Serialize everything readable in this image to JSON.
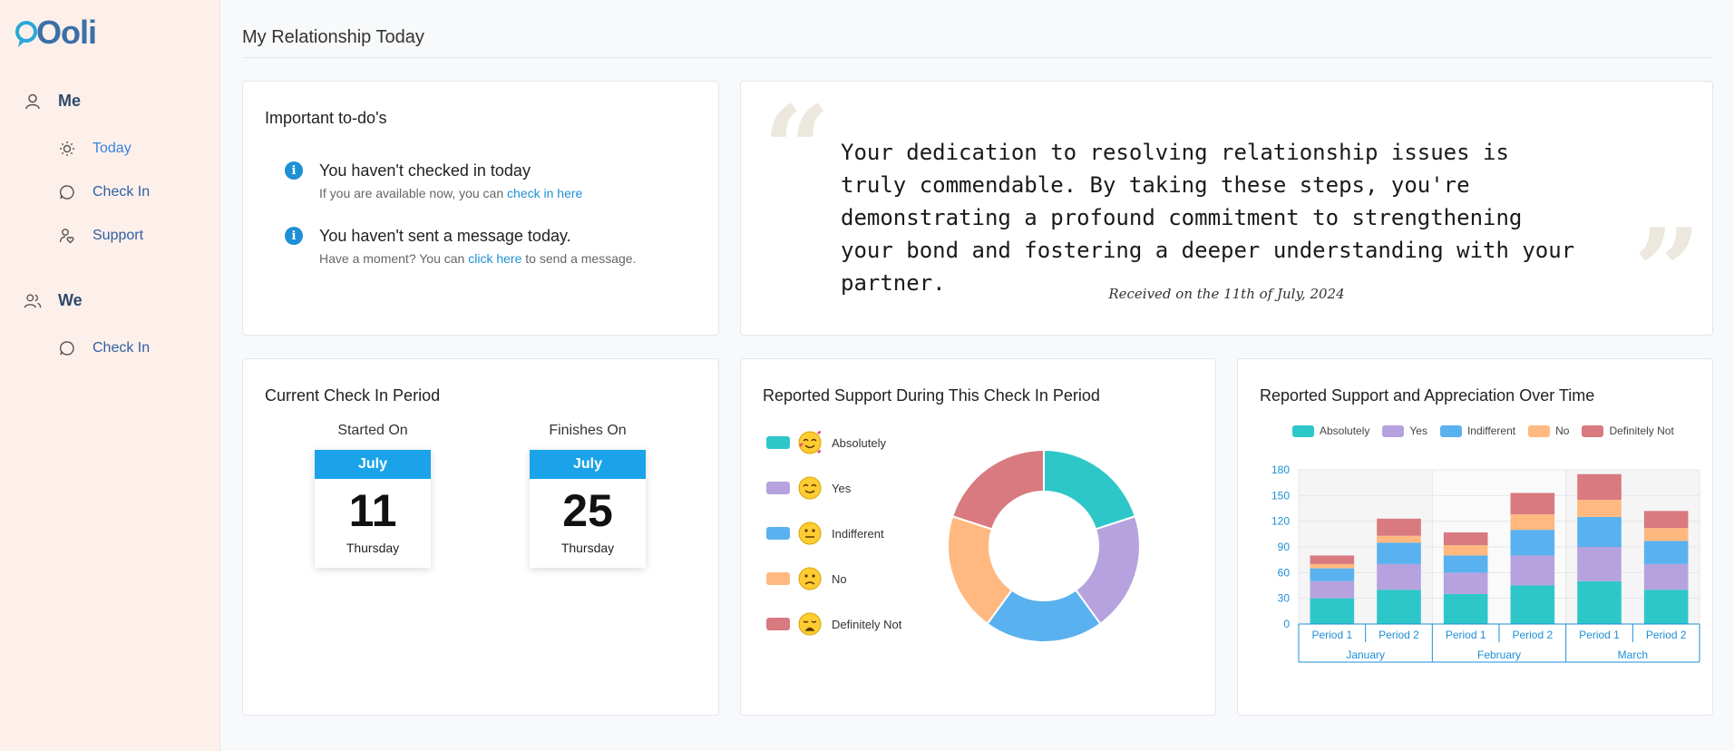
{
  "app": {
    "logo": "Ooli"
  },
  "sidebar": {
    "groups": [
      {
        "label": "Me",
        "items": [
          {
            "label": "Today"
          },
          {
            "label": "Check In"
          },
          {
            "label": "Support"
          }
        ]
      },
      {
        "label": "We",
        "items": [
          {
            "label": "Check In"
          }
        ]
      }
    ]
  },
  "page": {
    "title": "My Relationship Today"
  },
  "todo": {
    "title": "Important to-do's",
    "items": [
      {
        "main": "You haven't checked in today",
        "pre": "If you are available now, you can ",
        "link": "check in here",
        "post": ""
      },
      {
        "main": "You haven't sent a message today.",
        "pre": "Have a moment? You can ",
        "link": "click here",
        "post": " to send a message."
      }
    ]
  },
  "quote": {
    "text": "Your dedication to resolving relationship issues is truly commendable. By taking these steps, you're demonstrating a profound commitment to strengthening your bond and fostering a deeper understanding with your partner.",
    "date": "Received on the 11th of July, 2024"
  },
  "period": {
    "title": "Current Check In Period",
    "start": {
      "label": "Started On",
      "month": "July",
      "day": "11",
      "dow": "Thursday"
    },
    "end": {
      "label": "Finishes On",
      "month": "July",
      "day": "25",
      "dow": "Thursday"
    }
  },
  "colors": {
    "absolutely": "#2ec7c9",
    "yes": "#b6a2de",
    "indifferent": "#5ab1ef",
    "no": "#ffb980",
    "definitely_not": "#d87a80",
    "accent": "#1aa3e8"
  },
  "chart_data": [
    {
      "type": "pie",
      "title": "Reported Support During This Check In Period",
      "labels": [
        "Absolutely",
        "Yes",
        "Indifferent",
        "No",
        "Definitely Not"
      ],
      "values": [
        20,
        20,
        20,
        20,
        20
      ],
      "legend": "left"
    },
    {
      "type": "bar",
      "stacked": true,
      "title": "Reported Support and Appreciation Over Time",
      "categories": [
        "Period 1",
        "Period 2",
        "Period 1",
        "Period 2",
        "Period 1",
        "Period 2"
      ],
      "groups": [
        "January",
        "February",
        "March"
      ],
      "series": [
        {
          "name": "Absolutely",
          "values": [
            30,
            40,
            35,
            45,
            50,
            40
          ]
        },
        {
          "name": "Yes",
          "values": [
            20,
            30,
            25,
            35,
            40,
            30
          ]
        },
        {
          "name": "Indifferent",
          "values": [
            15,
            25,
            20,
            30,
            35,
            27
          ]
        },
        {
          "name": "No",
          "values": [
            5,
            8,
            12,
            18,
            20,
            15
          ]
        },
        {
          "name": "Definitely Not",
          "values": [
            10,
            20,
            15,
            25,
            30,
            20
          ]
        }
      ],
      "ylim": [
        0,
        180
      ],
      "yticks": [
        "0",
        "30",
        "60",
        "90",
        "120",
        "150",
        "180"
      ],
      "grid": true,
      "legend": "top"
    }
  ]
}
